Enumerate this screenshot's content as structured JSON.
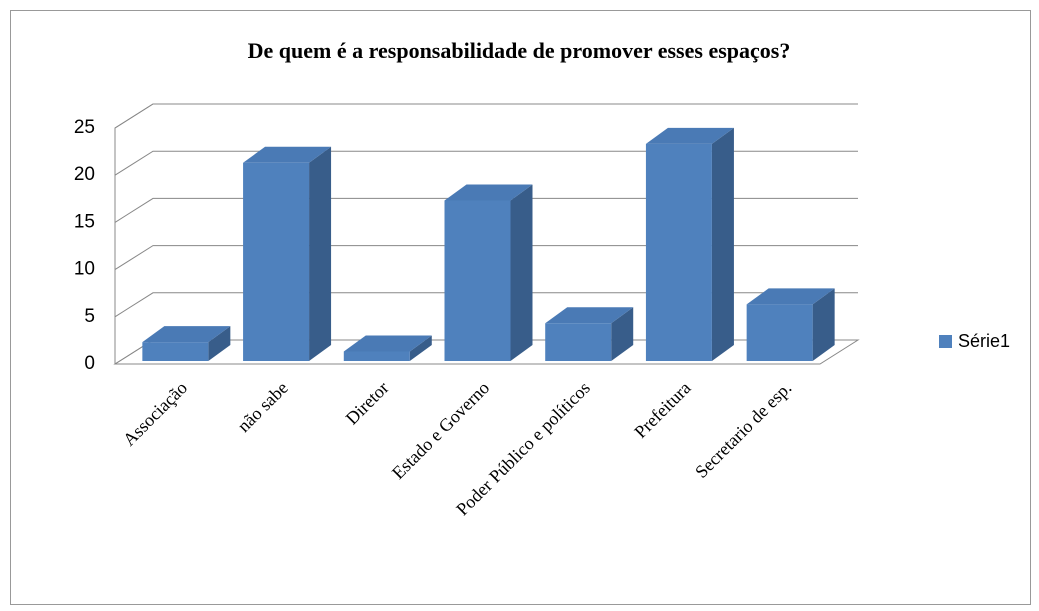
{
  "chart_data": {
    "type": "bar3d",
    "title": "De quem é a responsabilidade de promover esses espaços?",
    "categories": [
      "Associação",
      "não sabe",
      "Diretor",
      "Estado e Governo",
      "Poder Público e políticos",
      "Prefeitura",
      "Secretario de esp."
    ],
    "series": [
      {
        "name": "Série1",
        "color": "#4f81bd",
        "values": [
          2,
          21,
          1,
          17,
          4,
          23,
          6
        ]
      }
    ],
    "ylim": [
      0,
      25
    ],
    "yticks": [
      0,
      5,
      10,
      15,
      20,
      25
    ],
    "grid": true,
    "legend": "right"
  }
}
